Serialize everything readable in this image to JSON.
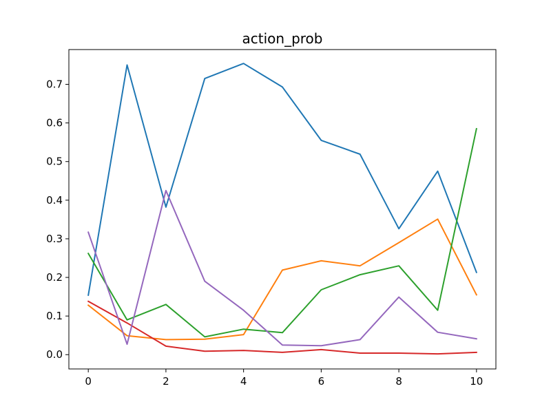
{
  "chart_data": {
    "type": "line",
    "title": "action_prob",
    "xlabel": "",
    "ylabel": "",
    "x": [
      0,
      1,
      2,
      3,
      4,
      5,
      6,
      7,
      8,
      9,
      10
    ],
    "xlim": [
      -0.5,
      10.5
    ],
    "ylim": [
      -0.037,
      0.79
    ],
    "xticks": [
      0,
      2,
      4,
      6,
      8,
      10
    ],
    "yticks": [
      0.0,
      0.1,
      0.2,
      0.3,
      0.4,
      0.5,
      0.6,
      0.7
    ],
    "xtick_labels": [
      "0",
      "2",
      "4",
      "6",
      "8",
      "10"
    ],
    "ytick_labels": [
      "0.0",
      "0.1",
      "0.2",
      "0.3",
      "0.4",
      "0.5",
      "0.6",
      "0.7"
    ],
    "grid": false,
    "legend": "none",
    "series": [
      {
        "color": "#1f77b4",
        "values": [
          0.154,
          0.75,
          0.382,
          0.715,
          0.754,
          0.693,
          0.555,
          0.519,
          0.326,
          0.475,
          0.213
        ]
      },
      {
        "color": "#ff7f0e",
        "values": [
          0.128,
          0.049,
          0.039,
          0.04,
          0.052,
          0.219,
          0.243,
          0.23,
          0.29,
          0.351,
          0.155
        ]
      },
      {
        "color": "#2ca02c",
        "values": [
          0.262,
          0.09,
          0.13,
          0.046,
          0.066,
          0.057,
          0.168,
          0.207,
          0.23,
          0.115,
          0.585
        ]
      },
      {
        "color": "#d62728",
        "values": [
          0.138,
          0.082,
          0.022,
          0.009,
          0.011,
          0.006,
          0.013,
          0.004,
          0.004,
          0.002,
          0.006
        ]
      },
      {
        "color": "#9467bd",
        "values": [
          0.317,
          0.027,
          0.425,
          0.19,
          0.115,
          0.025,
          0.023,
          0.039,
          0.149,
          0.058,
          0.041
        ]
      }
    ]
  }
}
